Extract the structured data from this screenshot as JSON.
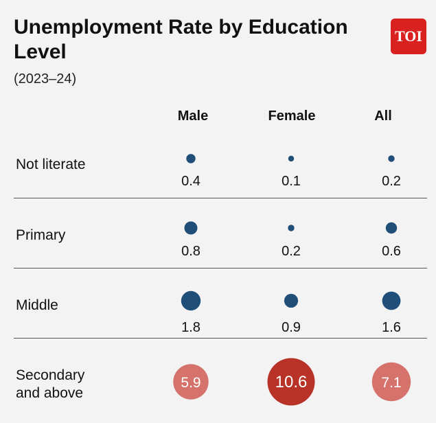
{
  "title": "Unemployment Rate by Education Level",
  "subtitle": "(2023–24)",
  "logo_text": "TOI",
  "colors": {
    "background": "#f3f3f3",
    "small_value_bubble": "#1f4e79",
    "mid_value_bubble": "#d4726b",
    "high_value_bubble": "#b83227",
    "logo": "#d9221f"
  },
  "chart_data": {
    "type": "bubble-table",
    "columns": [
      "Male",
      "Female",
      "All"
    ],
    "rows": [
      {
        "label": "Not literate",
        "values": [
          0.4,
          0.1,
          0.2
        ],
        "value_labels": [
          "0.4",
          "0.1",
          "0.2"
        ]
      },
      {
        "label": "Primary",
        "values": [
          0.8,
          0.2,
          0.6
        ],
        "value_labels": [
          "0.8",
          "0.2",
          "0.6"
        ]
      },
      {
        "label": "Middle",
        "values": [
          1.8,
          0.9,
          1.6
        ],
        "value_labels": [
          "1.8",
          "0.9",
          "1.6"
        ]
      },
      {
        "label": "Secondary\nand above",
        "values": [
          5.9,
          10.6,
          7.1
        ],
        "value_labels": [
          "5.9",
          "10.6",
          "7.1"
        ]
      }
    ]
  }
}
